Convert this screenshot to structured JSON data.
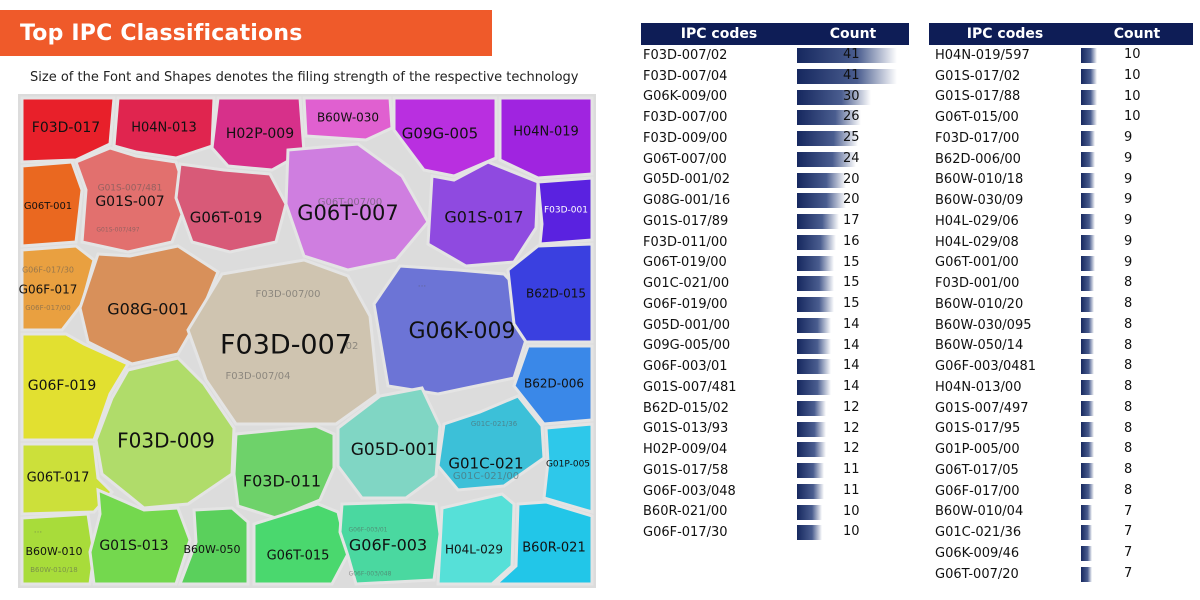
{
  "header": {
    "title": "Top IPC Classifications",
    "subtitle": "Size of the Font and Shapes denotes the filing strength of the respective technology"
  },
  "treemap": {
    "cells": [
      {
        "label": "F03D-017",
        "color": "#e8202a"
      },
      {
        "label": "H04N-013",
        "color": "#e0254f"
      },
      {
        "label": "H02P-009",
        "color": "#d7308a"
      },
      {
        "label": "B60W-030",
        "color": "#e060d0"
      },
      {
        "label": "G09G-005",
        "color": "#b92fe0"
      },
      {
        "label": "H04N-019",
        "color": "#a024e0"
      },
      {
        "label": "G06T-001",
        "color": "#ea6820"
      },
      {
        "label": "G01S-007",
        "color": "#e2706e"
      },
      {
        "label": "G01S-007/481",
        "color": "#e2706e"
      },
      {
        "label": "G01S-007/497",
        "color": "#e2706e"
      },
      {
        "label": "G06T-019",
        "color": "#d85a78"
      },
      {
        "label": "G06T-007",
        "color": "#cf7ee0"
      },
      {
        "label": "G06T-007/00",
        "color": "#cf7ee0"
      },
      {
        "label": "G01S-017",
        "color": "#8f4ae0"
      },
      {
        "label": "F03D-001",
        "color": "#5a22e0"
      },
      {
        "label": "G06F-017",
        "color": "#e9a040"
      },
      {
        "label": "G06F-017/30",
        "color": "#e9a040"
      },
      {
        "label": "G06F-017/00",
        "color": "#e9a040"
      },
      {
        "label": "G08G-001",
        "color": "#d8905a"
      },
      {
        "label": "F03D-007",
        "color": "#cfc4b0"
      },
      {
        "label": "F03D-007/00",
        "color": "#cfc4b0"
      },
      {
        "label": "F03D-007/04",
        "color": "#cfc4b0"
      },
      {
        "label": "02",
        "color": "#cfc4b0"
      },
      {
        "label": "G06K-009",
        "color": "#6c74d6"
      },
      {
        "label": "B62D-015",
        "color": "#3a40e0"
      },
      {
        "label": "G06F-019",
        "color": "#e2e030"
      },
      {
        "label": "B62D-006",
        "color": "#3a88e8"
      },
      {
        "label": "F03D-009",
        "color": "#b0dc6a"
      },
      {
        "label": "G05D-001",
        "color": "#80d6c4"
      },
      {
        "label": "G01C-021",
        "color": "#3cc0d8"
      },
      {
        "label": "G01C-021/36",
        "color": "#3cc0d8"
      },
      {
        "label": "G01C-021/00",
        "color": "#3cc0d8"
      },
      {
        "label": "G01P-005",
        "color": "#2ec8ea"
      },
      {
        "label": "G06T-017",
        "color": "#cce03a"
      },
      {
        "label": "F03D-011",
        "color": "#6ed26a"
      },
      {
        "label": "B60W-010",
        "color": "#a8dc3a"
      },
      {
        "label": "B60W-010/18",
        "color": "#a8dc3a"
      },
      {
        "label": "G01S-013",
        "color": "#74d84e"
      },
      {
        "label": "B60W-050",
        "color": "#5ad05c"
      },
      {
        "label": "G06T-015",
        "color": "#4ad86e"
      },
      {
        "label": "G06F-003",
        "color": "#4ad8a0"
      },
      {
        "label": "G06F-003/01",
        "color": "#4ad8a0"
      },
      {
        "label": "G06F-003/048",
        "color": "#4ad8a0"
      },
      {
        "label": "H04L-029",
        "color": "#56e0d8"
      },
      {
        "label": "B60R-021",
        "color": "#22c6e8"
      },
      {
        "label": "...",
        "color": "#888888"
      }
    ]
  },
  "tableA": {
    "header_code": "IPC codes",
    "header_count": "Count",
    "bar_color": "#16285f",
    "rows": [
      {
        "code": "F03D-007/02",
        "count": 41
      },
      {
        "code": "F03D-007/04",
        "count": 41
      },
      {
        "code": "G06K-009/00",
        "count": 30
      },
      {
        "code": "F03D-007/00",
        "count": 26
      },
      {
        "code": "F03D-009/00",
        "count": 25
      },
      {
        "code": "G06T-007/00",
        "count": 24
      },
      {
        "code": "G05D-001/02",
        "count": 20
      },
      {
        "code": "G08G-001/16",
        "count": 20
      },
      {
        "code": "G01S-017/89",
        "count": 17
      },
      {
        "code": "F03D-011/00",
        "count": 16
      },
      {
        "code": "G06T-019/00",
        "count": 15
      },
      {
        "code": "G01C-021/00",
        "count": 15
      },
      {
        "code": "G06F-019/00",
        "count": 15
      },
      {
        "code": "G05D-001/00",
        "count": 14
      },
      {
        "code": "G09G-005/00",
        "count": 14
      },
      {
        "code": "G06F-003/01",
        "count": 14
      },
      {
        "code": "G01S-007/481",
        "count": 14
      },
      {
        "code": "B62D-015/02",
        "count": 12
      },
      {
        "code": "G01S-013/93",
        "count": 12
      },
      {
        "code": "H02P-009/04",
        "count": 12
      },
      {
        "code": "G01S-017/58",
        "count": 11
      },
      {
        "code": "G06F-003/048",
        "count": 11
      },
      {
        "code": "B60R-021/00",
        "count": 10
      },
      {
        "code": "G06F-017/30",
        "count": 10
      }
    ]
  },
  "tableB": {
    "header_code": "IPC codes",
    "header_count": "Count",
    "rows": [
      {
        "code": "H04N-019/597",
        "count": 10
      },
      {
        "code": "G01S-017/02",
        "count": 10
      },
      {
        "code": "G01S-017/88",
        "count": 10
      },
      {
        "code": "G06T-015/00",
        "count": 10
      },
      {
        "code": "F03D-017/00",
        "count": 9
      },
      {
        "code": "B62D-006/00",
        "count": 9
      },
      {
        "code": "B60W-010/18",
        "count": 9
      },
      {
        "code": "B60W-030/09",
        "count": 9
      },
      {
        "code": "H04L-029/06",
        "count": 9
      },
      {
        "code": "H04L-029/08",
        "count": 9
      },
      {
        "code": "G06T-001/00",
        "count": 9
      },
      {
        "code": "F03D-001/00",
        "count": 8
      },
      {
        "code": "B60W-010/20",
        "count": 8
      },
      {
        "code": "B60W-030/095",
        "count": 8
      },
      {
        "code": "B60W-050/14",
        "count": 8
      },
      {
        "code": "G06F-003/0481",
        "count": 8
      },
      {
        "code": "H04N-013/00",
        "count": 8
      },
      {
        "code": "G01S-007/497",
        "count": 8
      },
      {
        "code": "G01S-017/95",
        "count": 8
      },
      {
        "code": "G01P-005/00",
        "count": 8
      },
      {
        "code": "G06T-017/05",
        "count": 8
      },
      {
        "code": "G06F-017/00",
        "count": 8
      },
      {
        "code": "B60W-010/04",
        "count": 7
      },
      {
        "code": "G01C-021/36",
        "count": 7
      },
      {
        "code": "G06K-009/46",
        "count": 7
      },
      {
        "code": "G06T-007/20",
        "count": 7
      }
    ]
  }
}
